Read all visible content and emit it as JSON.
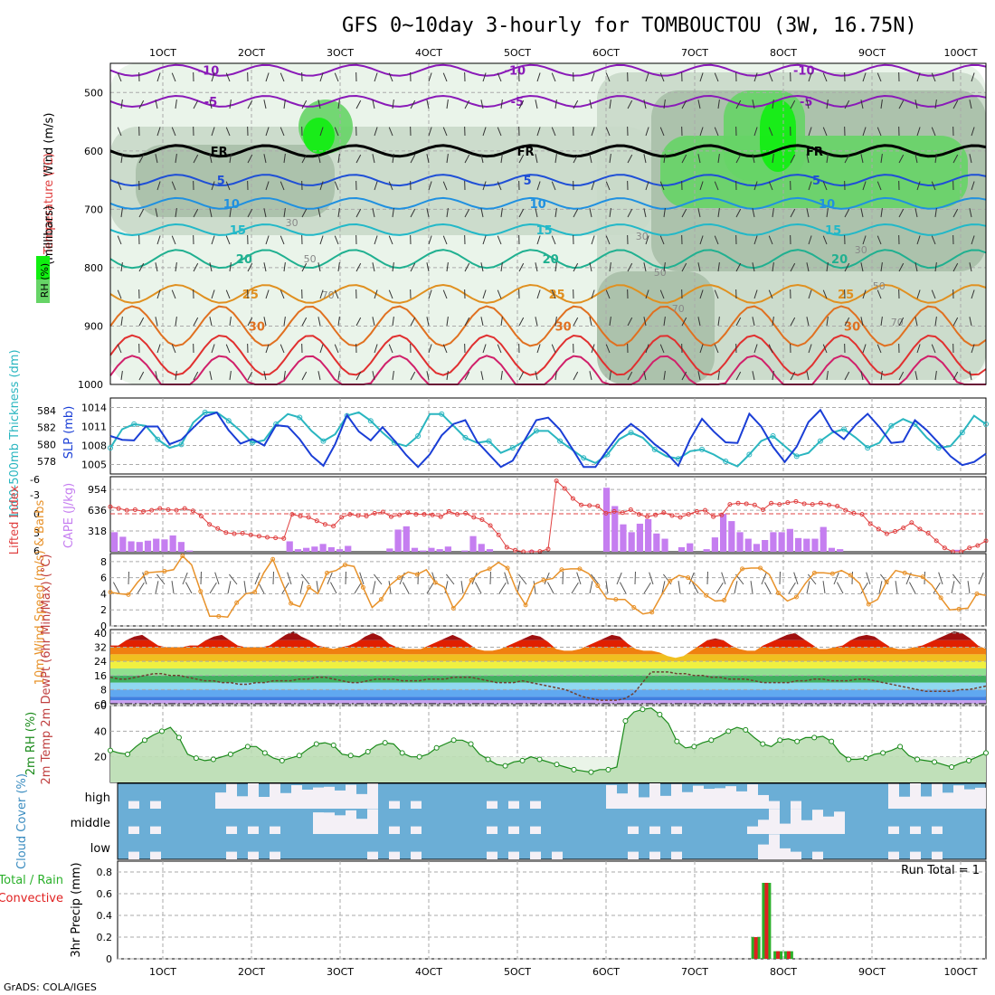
{
  "header": {
    "title": "GFS 0~10day 3-hourly for TOMBOUCTOU (3W, 16.75N)",
    "credit": "GrADS: COLA/IGES"
  },
  "time_axis": {
    "labels": [
      "1OCT",
      "2OCT",
      "3OCT",
      "4OCT",
      "5OCT",
      "6OCT",
      "7OCT",
      "8OCT",
      "9OCT",
      "10OCT"
    ]
  },
  "colors": {
    "rh_light": "#e8f3e8",
    "rh_mid": "#c9d9c9",
    "rh_dark": "#a9bfa9",
    "rh_green": "#66d466",
    "rh_bright": "#10ee10",
    "cloud_blue": "#6baed6",
    "cloud_white": "#f4f0f6",
    "cape_bar": "#c57ef0",
    "lifted": "#e04040",
    "slp": "#1a3ed6",
    "thickness": "#2ab6c0",
    "wind_speed": "#e8922a",
    "rh2m": "#1a8a1a",
    "precip_green": "#2ab02a",
    "precip_red": "#e02020"
  },
  "chart_data": [
    {
      "type": "contour",
      "panel": "upper-air",
      "ylabel_parts": [
        "RH (%)",
        "Temperature (°C)",
        "Wind (m/s)"
      ],
      "ylabel_units": "(millibars)",
      "ylim": [
        1000,
        450
      ],
      "yticks": [
        500,
        600,
        700,
        800,
        900,
        1000
      ],
      "temperature_contours": [
        {
          "label": "-10",
          "color": "#8a1ab8",
          "level_mb": 462
        },
        {
          "label": "-5",
          "color": "#8a1ab8",
          "level_mb": 515
        },
        {
          "label": "FR",
          "color": "#000000",
          "level_mb": 600
        },
        {
          "label": "5",
          "color": "#1f4fd6",
          "level_mb": 650
        },
        {
          "label": "10",
          "color": "#2090e0",
          "level_mb": 690
        },
        {
          "label": "15",
          "color": "#22b8c8",
          "level_mb": 735
        },
        {
          "label": "20",
          "color": "#20b090",
          "level_mb": 785
        },
        {
          "label": "25",
          "color": "#e09020",
          "level_mb": 845
        },
        {
          "label": "30",
          "color": "#e07020",
          "level_mb": 900
        },
        {
          "label": "",
          "color": "#e03030",
          "level_mb": 950
        },
        {
          "label": "",
          "color": "#d0206a",
          "level_mb": 985
        }
      ],
      "rh_labels": [
        "30",
        "50",
        "70"
      ]
    },
    {
      "type": "line",
      "panel": "slp-thickness",
      "left_axis": {
        "label": "1000-500mb Thickness (dm)",
        "ticks": [
          578,
          580,
          582,
          584
        ],
        "ylim": [
          576.5,
          585.5
        ]
      },
      "right_axis": {
        "label": "SLP (mb)",
        "ticks": [
          1005,
          1008,
          1011,
          1014
        ],
        "ylim": [
          1003.5,
          1015.5
        ]
      },
      "series": [
        {
          "name": "SLP (mb)",
          "values": [
            1009.5,
            1008.9,
            1008.8,
            1011.0,
            1011.0,
            1008.2,
            1008.9,
            1010.8,
            1012.6,
            1013.2,
            1010.4,
            1008.3,
            1009.0,
            1008.0,
            1011.2,
            1011.0,
            1009.0,
            1006.4,
            1004.8,
            1008.2,
            1012.8,
            1010.2,
            1008.8,
            1010.9,
            1008.8,
            1006.5,
            1004.6,
            1006.6,
            1009.6,
            1011.4,
            1012.0,
            1008.6,
            1006.6,
            1004.6,
            1005.6,
            1008.8,
            1012.0,
            1012.4,
            1010.5,
            1007.6,
            1004.6,
            1004.6,
            1007.3,
            1009.8,
            1011.4,
            1010.0,
            1008.2,
            1006.8,
            1004.8,
            1009.0,
            1012.2,
            1010.2,
            1008.5,
            1008.4,
            1013.0,
            1011.0,
            1007.8,
            1005.4,
            1007.8,
            1011.7,
            1013.6,
            1010.4,
            1009.0,
            1011.3,
            1013.0,
            1010.9,
            1008.4,
            1008.6,
            1012.0,
            1010.4,
            1008.4,
            1006.3,
            1004.9,
            1005.4,
            1006.7
          ]
        },
        {
          "name": "Thickness (dm)",
          "values": [
            579.6,
            581.8,
            582.4,
            582.2,
            580.6,
            579.6,
            580.0,
            582.6,
            583.8,
            583.8,
            582.8,
            581.6,
            580.2,
            580.5,
            582.4,
            583.6,
            583.2,
            581.6,
            580.4,
            581.2,
            583.4,
            583.8,
            582.8,
            581.4,
            580.2,
            579.8,
            581.0,
            583.6,
            583.6,
            582.2,
            580.8,
            580.2,
            580.4,
            579.0,
            579.6,
            580.4,
            581.6,
            581.6,
            580.4,
            579.4,
            578.4,
            577.8,
            578.8,
            580.6,
            581.4,
            580.8,
            579.4,
            578.6,
            578.3,
            579.2,
            579.4,
            578.8,
            578.0,
            577.4,
            578.8,
            580.4,
            581.0,
            579.8,
            578.6,
            579.0,
            580.4,
            581.4,
            581.8,
            580.8,
            579.6,
            580.2,
            582.2,
            583.0,
            582.4,
            580.8,
            579.6,
            579.8,
            581.4,
            583.4,
            582.4
          ]
        }
      ]
    },
    {
      "type": "bar+line",
      "panel": "cape-lifted-index",
      "left_axis": {
        "label": "Lifted Index",
        "ticks": [
          "-3",
          "0",
          "3",
          "6",
          "-6"
        ]
      },
      "right_axis": {
        "label": "CAPE (J/kg)",
        "ticks": [
          318,
          636,
          954
        ]
      },
      "lifted_index_values": [
        -1.2,
        -0.9,
        -0.6,
        -0.7,
        -0.4,
        -0.6,
        -0.9,
        -0.7,
        -0.6,
        -0.9,
        -0.5,
        0.4,
        1.8,
        2.5,
        3.2,
        3.4,
        3.3,
        3.6,
        3.8,
        4.0,
        4.1,
        4.2,
        0.1,
        0.4,
        0.6,
        1.2,
        1.8,
        2.1,
        0.6,
        0.1,
        0.3,
        0.4,
        -0.1,
        -0.3,
        0.5,
        0.2,
        -0.2,
        0.1,
        0.1,
        0.2,
        0.5,
        -0.4,
        0.1,
        -0.1,
        0.6,
        1.0,
        2.0,
        3.6,
        5.7,
        6.2,
        6.8,
        6.5,
        6.4,
        6.0,
        -5.6,
        -4.3,
        -2.6,
        -1.5,
        -1.4,
        -1.3,
        -0.1,
        -0.4,
        -0.2,
        -0.7,
        0.1,
        0.5,
        0.2,
        -0.2,
        0.3,
        0.6,
        0.1,
        -0.4,
        -0.6,
        0.5,
        0.2,
        -1.6,
        -1.8,
        -1.7,
        -1.5,
        -0.7,
        -1.8,
        -1.6,
        -1.9,
        -2.1,
        -1.7,
        -1.6,
        -1.8,
        -1.5,
        -1.3,
        -0.6,
        -0.1,
        0.1,
        1.7,
        2.6,
        3.4,
        3.0,
        2.4,
        1.5,
        2.6,
        3.3,
        4.6,
        5.8,
        6.7,
        6.6,
        5.8,
        5.4,
        4.6
      ],
      "cape_values": [
        300,
        230,
        160,
        150,
        170,
        200,
        190,
        250,
        150,
        20,
        0,
        0,
        0,
        0,
        0,
        0,
        0,
        0,
        0,
        0,
        0,
        160,
        40,
        60,
        80,
        120,
        70,
        40,
        90,
        0,
        0,
        0,
        0,
        50,
        340,
        390,
        60,
        20,
        60,
        40,
        80,
        0,
        20,
        240,
        120,
        40,
        0,
        0,
        0,
        0,
        20,
        0,
        0,
        0,
        0,
        0,
        0,
        0,
        0,
        980,
        700,
        420,
        300,
        430,
        500,
        280,
        200,
        0,
        70,
        130,
        0,
        40,
        220,
        580,
        470,
        300,
        200,
        120,
        180,
        300,
        300,
        350,
        210,
        200,
        200,
        380,
        60,
        40,
        0,
        0,
        0,
        0,
        0,
        0,
        0,
        0,
        0,
        0,
        0,
        0,
        0,
        30,
        0,
        0,
        0
      ]
    },
    {
      "type": "line",
      "panel": "10m-wind",
      "ylabel": "10m Wind Speed (m/s) & Barbs",
      "ylim": [
        0,
        9
      ],
      "yticks": [
        0,
        2,
        4,
        6,
        8
      ],
      "values": [
        4.2,
        4.0,
        3.9,
        5.4,
        6.6,
        6.7,
        6.8,
        7.0,
        8.7,
        7.6,
        4.3,
        1.2,
        1.2,
        1.1,
        2.9,
        4.0,
        4.2,
        6.6,
        8.3,
        5.5,
        2.8,
        2.4,
        4.8,
        4.0,
        6.6,
        6.9,
        7.6,
        7.4,
        4.8,
        2.3,
        3.3,
        5.1,
        6.0,
        6.7,
        6.4,
        7.0,
        5.4,
        4.8,
        2.2,
        3.5,
        5.7,
        6.7,
        7.1,
        7.9,
        7.2,
        4.4,
        2.6,
        5.2,
        5.7,
        5.9,
        7.0,
        7.1,
        7.1,
        6.5,
        5.0,
        3.4,
        3.3,
        3.3,
        2.3,
        1.5,
        1.7,
        3.7,
        5.6,
        6.3,
        6.0,
        5.0,
        3.8,
        3.1,
        3.2,
        5.6,
        7.1,
        7.2,
        7.2,
        6.4,
        4.1,
        3.1,
        3.6,
        5.3,
        6.6,
        6.6,
        6.5,
        6.9,
        6.3,
        5.3,
        2.7,
        3.3,
        5.5,
        6.9,
        6.6,
        6.3,
        6.1,
        5.1,
        3.5,
        2.0,
        2.1,
        2.2,
        4.0,
        3.8
      ]
    },
    {
      "type": "area",
      "panel": "2m-temp-dewpoint",
      "ylabel": "2m Temp 2m DewPt (6hr Min/Max) (°C)",
      "ylim": [
        0,
        42
      ],
      "yticks": [
        0,
        8,
        16,
        24,
        32,
        40
      ],
      "temp_values": [
        33,
        33,
        36,
        38,
        39,
        36,
        33,
        32,
        32,
        32,
        33,
        33,
        36,
        38,
        39,
        36,
        33,
        32,
        32,
        32,
        33,
        36,
        39,
        41,
        38,
        36,
        33,
        32,
        31,
        32,
        33,
        35,
        38,
        40,
        38,
        34,
        32,
        31,
        31,
        31,
        33,
        35,
        37,
        39,
        37,
        34,
        31,
        30,
        30,
        31,
        33,
        35,
        37,
        39,
        38,
        35,
        31,
        30,
        30,
        31,
        33,
        35,
        37,
        39,
        38,
        34,
        31,
        30,
        30,
        29,
        27,
        26,
        27,
        30,
        33,
        36,
        37,
        36,
        33,
        31,
        30,
        30,
        33,
        35,
        37,
        39,
        40,
        37,
        34,
        31,
        31,
        32,
        33,
        36,
        38,
        39,
        38,
        35,
        32,
        31,
        31,
        32,
        33,
        35,
        37,
        39,
        41,
        40,
        37,
        33,
        31
      ],
      "dewpoint_values": [
        15,
        14,
        14,
        15,
        16,
        17,
        17,
        16,
        16,
        15,
        14,
        13,
        13,
        12,
        12,
        11,
        11,
        12,
        12,
        13,
        13,
        13,
        14,
        14,
        15,
        15,
        14,
        13,
        12,
        12,
        13,
        14,
        14,
        14,
        13,
        13,
        13,
        14,
        14,
        14,
        15,
        15,
        15,
        14,
        13,
        12,
        12,
        12,
        13,
        12,
        11,
        10,
        9,
        8,
        6,
        4,
        3,
        2,
        2,
        2,
        3,
        6,
        12,
        18,
        18,
        18,
        17,
        17,
        16,
        16,
        15,
        15,
        14,
        14,
        14,
        13,
        12,
        12,
        12,
        12,
        13,
        13,
        14,
        14,
        13,
        13,
        13,
        14,
        14,
        13,
        12,
        11,
        10,
        9,
        8,
        7,
        7,
        7,
        7,
        8,
        8,
        9,
        10
      ]
    },
    {
      "type": "area",
      "panel": "2m-rh",
      "ylabel": "2m RH (%)",
      "ylim": [
        0,
        60
      ],
      "yticks": [
        20,
        40,
        60
      ],
      "values": [
        25,
        23,
        22,
        28,
        33,
        37,
        40,
        43,
        35,
        22,
        19,
        17,
        18,
        20,
        22,
        25,
        28,
        28,
        23,
        19,
        17,
        19,
        21,
        26,
        30,
        31,
        29,
        22,
        21,
        20,
        24,
        29,
        31,
        30,
        23,
        20,
        20,
        22,
        27,
        30,
        33,
        33,
        30,
        22,
        18,
        14,
        13,
        16,
        17,
        20,
        18,
        16,
        14,
        12,
        10,
        9,
        8,
        10,
        10,
        12,
        48,
        55,
        57,
        58,
        53,
        46,
        32,
        27,
        28,
        31,
        33,
        36,
        40,
        43,
        41,
        35,
        30,
        28,
        33,
        34,
        32,
        35,
        35,
        36,
        32,
        23,
        18,
        18,
        19,
        22,
        23,
        25,
        28,
        21,
        18,
        17,
        16,
        14,
        12,
        15,
        17,
        20,
        23
      ]
    },
    {
      "type": "heatmap",
      "panel": "cloud-cover",
      "ylabel": "Cloud Cover (%)",
      "rows": [
        "high",
        "middle",
        "low"
      ]
    },
    {
      "type": "bar",
      "panel": "precip",
      "ylabel": "3hr Precip (mm)",
      "left_label_lines": [
        "Total / Rain",
        "Convective"
      ],
      "run_total": "Run Total = 1",
      "ylim": [
        0,
        0.9
      ],
      "yticks": [
        0,
        0.2,
        0.4,
        0.6,
        0.8
      ],
      "bars": [
        {
          "x": 7.69,
          "total": 0.2,
          "convective": 0.2
        },
        {
          "x": 7.81,
          "total": 0.7,
          "convective": 0.7
        },
        {
          "x": 7.94,
          "total": 0.07,
          "convective": 0.07
        },
        {
          "x": 8.06,
          "total": 0.07,
          "convective": 0.07
        }
      ]
    }
  ]
}
